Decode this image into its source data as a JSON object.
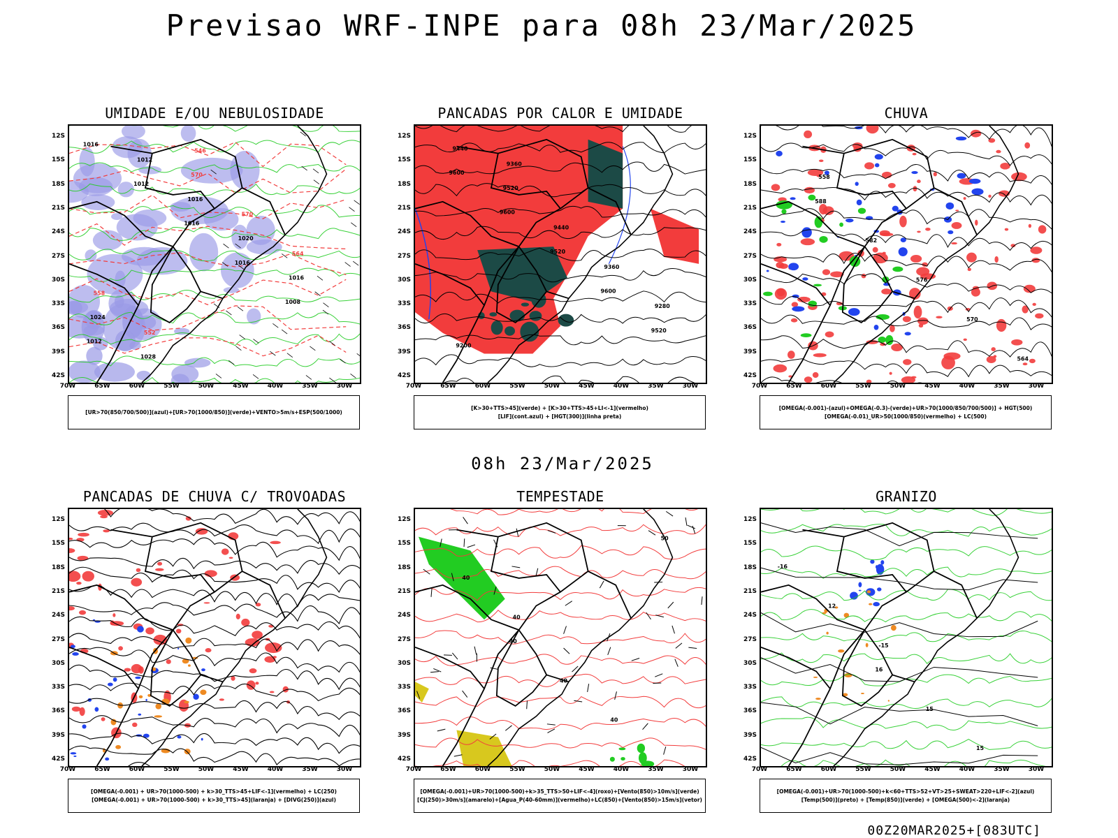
{
  "main_title": "Previsao WRF-INPE  para 08h 23/Mar/2025",
  "mid_title": "08h 23/Mar/2025",
  "footer": "00Z20MAR2025+[083UTC]",
  "lat_labels": [
    "12S",
    "15S",
    "18S",
    "21S",
    "24S",
    "27S",
    "30S",
    "33S",
    "36S",
    "39S",
    "42S"
  ],
  "lon_labels": [
    "70W",
    "65W",
    "60W",
    "55W",
    "50W",
    "45W",
    "40W",
    "35W",
    "30W"
  ],
  "panels": [
    {
      "title": "UMIDADE E/OU NEBULOSIDADE",
      "legend": [
        "[UR>70(850/700/500)](azul)+[UR>70(1000/850)](verde)+VENTO>5m/s+ESP(500/1000)"
      ],
      "labels": [
        "1016",
        "1012",
        "1016",
        "1016",
        "1008",
        "1012",
        "1012",
        "1016",
        "1020",
        "1016",
        "1024",
        "1028",
        "570",
        "570",
        "564",
        "558",
        "552",
        "546"
      ]
    },
    {
      "title": "PANCADAS POR CALOR E UMIDADE",
      "legend": [
        "[K>30+TTS>45](verde) + [K>30+TTS>45+LI<-1](vermelho)",
        "[LIF](cont.azul) + [HGT(300)](linha preta)"
      ],
      "labels": [
        "9600",
        "9600",
        "9520",
        "9600",
        "9520",
        "9440",
        "9520",
        "9440",
        "9360",
        "9280",
        "9200",
        "9360"
      ]
    },
    {
      "title": "CHUVA",
      "legend": [
        "[OMEGA(-0.001)-(azul)+OMEGA(-0.3)-(verde)+UR>70(1000/850/700/500)] + HGT(500)",
        "[OMEGA(-0.01)_UR>50(1000/850)(vermelho) + LC(500)"
      ],
      "labels": [
        "588",
        "582",
        "576",
        "570",
        "564",
        "558"
      ]
    },
    {
      "title": "PANCADAS DE CHUVA C/ TROVOADAS",
      "legend": [
        "[OMEGA(-0.001) + UR>70(1000-500) + k>30_TTS>45+LIF<-1](vermelho) + LC(250)",
        "[OMEGA(-0.001) + UR>70(1000-500) + k>30_TTS>45](laranja) + [DIVG(250)](azul)"
      ],
      "labels": []
    },
    {
      "title": "TEMPESTADE",
      "legend": [
        "[OMEGA(-0.001)+UR>70(1000-500)+k>35_TTS>50+LIF<-4](roxo)+[Vento(850)>10m/s](verde)",
        "[CJ(250)>30m/s](amarelo)+[Agua_P(40-60mm)](vermelho)+LC(850)+[Vento(850)>15m/s](vetor)"
      ],
      "labels": [
        "40",
        "40",
        "40",
        "50",
        "40",
        "40"
      ]
    },
    {
      "title": "GRANIZO",
      "legend": [
        "[OMEGA(-0.001)+UR>70(1000-500)+k<60+TTS>52+VT>25+SWEAT>220+LIF<-2](azul)",
        "[Temp(500)](preto) + [Temp(850)](verde) + [OMEGA(500)<-2](laranja)"
      ],
      "labels": [
        "16",
        "15",
        "15",
        "-16",
        "12",
        "-15"
      ]
    }
  ],
  "colors": {
    "red": "#f23c3c",
    "green": "#22cc22",
    "blue": "#2244ee",
    "purple": "#9a9ae6",
    "dark": "#1c4a46",
    "orange": "#ee8a22",
    "yellow": "#d8c81e",
    "black": "#000000"
  }
}
